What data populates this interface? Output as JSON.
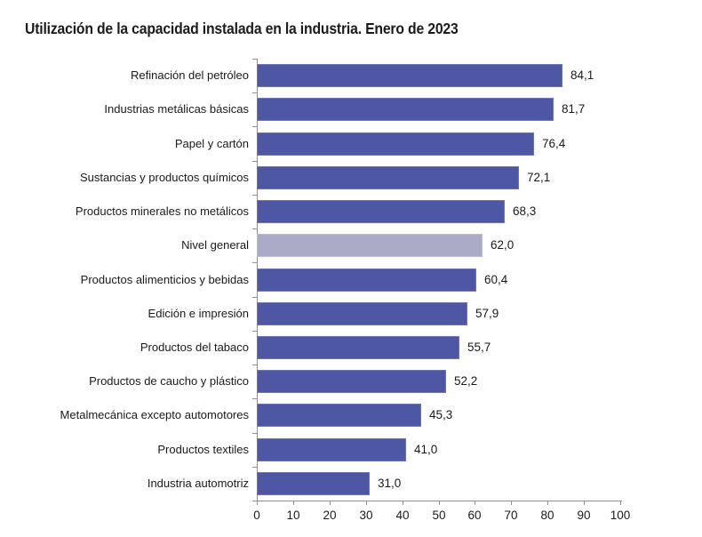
{
  "chart_data": {
    "type": "bar",
    "orientation": "horizontal",
    "title": "Utilización de la capacidad instalada en la industria. Enero de 2023",
    "categories": [
      "Refinación del petróleo",
      "Industrias metálicas básicas",
      "Papel y cartón",
      "Sustancias y productos químicos",
      "Productos minerales no metálicos",
      "Nivel general",
      "Productos alimenticios y bebidas",
      "Edición e impresión",
      "Productos del tabaco",
      "Productos de caucho y plástico",
      "Metalmecánica excepto automotores",
      "Productos textiles",
      "Industria automotriz"
    ],
    "values": [
      84.1,
      81.7,
      76.4,
      72.1,
      68.3,
      62.0,
      60.4,
      57.9,
      55.7,
      52.2,
      45.3,
      41.0,
      31.0
    ],
    "value_labels": [
      "84,1",
      "81,7",
      "76,4",
      "72,1",
      "68,3",
      "62,0",
      "60,4",
      "57,9",
      "55,7",
      "52,2",
      "45,3",
      "41,0",
      "31,0"
    ],
    "highlight_index": 5,
    "highlight_category": "Nivel general",
    "xlim": [
      0,
      100
    ],
    "x_ticks": [
      0,
      10,
      20,
      30,
      40,
      50,
      60,
      70,
      80,
      90,
      100
    ],
    "xlabel": "",
    "ylabel": "",
    "grid": false,
    "legend": false,
    "colors": {
      "bar": "#4d57a4",
      "bar_edge": "#6d76b5",
      "highlight_bar": "#ababc7",
      "highlight_edge": "#bcbbd3",
      "axis": "#8f8f8f",
      "text": "#1a1a1a",
      "background": "#ffffff"
    }
  }
}
